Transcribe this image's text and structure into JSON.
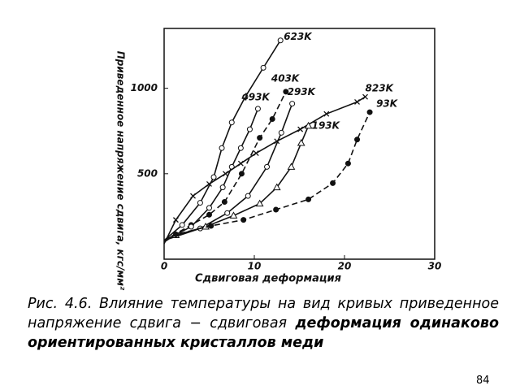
{
  "chart_data": {
    "type": "line",
    "xlabel": "Сдвиговая деформация",
    "ylabel": "Приведенное напряжение сдвига, кгс/мм²",
    "xlim": [
      0,
      30
    ],
    "xticks": [
      0,
      10,
      20,
      30
    ],
    "ylim": [
      0,
      1350
    ],
    "yticks": [
      500,
      1000
    ],
    "series": [
      {
        "name": "623K",
        "color": "#111",
        "marker": "circle-open",
        "dash": false,
        "x": [
          0,
          2,
          4,
          5.5,
          6.4,
          7.5,
          9,
          11,
          12.9
        ],
        "values": [
          110,
          200,
          330,
          480,
          650,
          800,
          950,
          1120,
          1280
        ]
      },
      {
        "name": "403K",
        "color": "#111",
        "marker": "circle-filled",
        "dash": true,
        "x": [
          0,
          3,
          5,
          6.7,
          8.6,
          10.6,
          12,
          13.5
        ],
        "values": [
          110,
          200,
          260,
          335,
          500,
          710,
          820,
          980
        ]
      },
      {
        "name": "493K",
        "color": "#111",
        "marker": "circle-open",
        "dash": false,
        "x": [
          0,
          3,
          5,
          6.5,
          7.5,
          8.5,
          9.5,
          10.4
        ],
        "values": [
          110,
          190,
          300,
          420,
          540,
          650,
          760,
          880
        ]
      },
      {
        "name": "293K",
        "color": "#111",
        "marker": "circle-open",
        "dash": false,
        "x": [
          0,
          4,
          7,
          9.3,
          11.4,
          13,
          14.2
        ],
        "values": [
          110,
          180,
          270,
          370,
          540,
          740,
          910
        ]
      },
      {
        "name": "823K",
        "color": "#111",
        "marker": "cross",
        "dash": false,
        "x": [
          0,
          1.3,
          3.2,
          5,
          6.8,
          8.5,
          10.2,
          12.5,
          15.1,
          18,
          21.4,
          22.3
        ],
        "values": [
          90,
          230,
          370,
          440,
          500,
          560,
          620,
          690,
          760,
          850,
          920,
          950
        ]
      },
      {
        "name": "193K",
        "color": "#111",
        "marker": "triangle-open",
        "dash": false,
        "x": [
          0,
          1.3,
          4.6,
          7.7,
          10.6,
          12.5,
          14.1,
          15.2,
          16
        ],
        "values": [
          110,
          140,
          190,
          255,
          325,
          420,
          540,
          680,
          780
        ]
      },
      {
        "name": "93K",
        "color": "#111",
        "marker": "circle-filled",
        "dash": true,
        "x": [
          0,
          1.3,
          5.2,
          8.8,
          12.4,
          16,
          18.7,
          20.4,
          21.4,
          22.8
        ],
        "values": [
          100,
          145,
          195,
          230,
          290,
          350,
          445,
          560,
          700,
          860
        ]
      }
    ]
  },
  "caption": [
    "Рис. 4.6. Влияние температуры на вид кривых приведенное напряжение сдвига − сдвиговая ",
    "деформация одинаково ориентированных кристаллов меди"
  ],
  "page_number": "84"
}
